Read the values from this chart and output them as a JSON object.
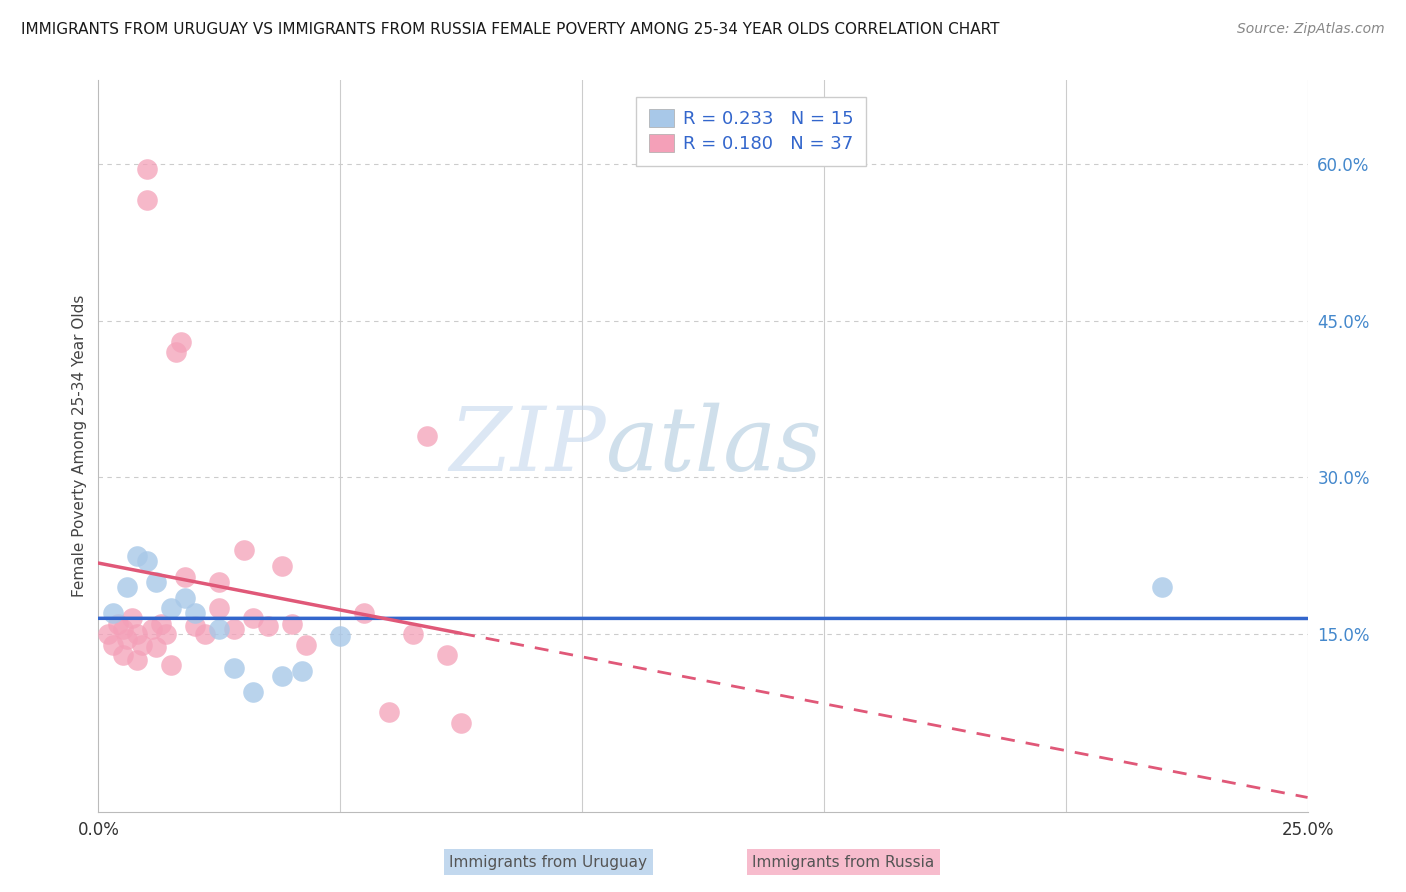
{
  "title": "IMMIGRANTS FROM URUGUAY VS IMMIGRANTS FROM RUSSIA FEMALE POVERTY AMONG 25-34 YEAR OLDS CORRELATION CHART",
  "source": "Source: ZipAtlas.com",
  "ylabel": "Female Poverty Among 25-34 Year Olds",
  "xlim": [
    0.0,
    0.25
  ],
  "ylim": [
    -0.02,
    0.68
  ],
  "xticks": [
    0.0,
    0.05,
    0.1,
    0.15,
    0.2,
    0.25
  ],
  "yticks_right": [
    0.15,
    0.3,
    0.45,
    0.6
  ],
  "ytick_labels_right": [
    "15.0%",
    "30.0%",
    "45.0%",
    "60.0%"
  ],
  "uruguay_color": "#a8c8e8",
  "russia_color": "#f4a0b8",
  "line_uruguay_color": "#3366cc",
  "line_russia_color": "#e05878",
  "R_uruguay": "0.233",
  "N_uruguay": "15",
  "R_russia": "0.180",
  "N_russia": "37",
  "uruguay_x": [
    0.003,
    0.006,
    0.008,
    0.01,
    0.012,
    0.015,
    0.018,
    0.02,
    0.025,
    0.028,
    0.032,
    0.038,
    0.042,
    0.05,
    0.22
  ],
  "uruguay_y": [
    0.17,
    0.195,
    0.225,
    0.22,
    0.2,
    0.175,
    0.185,
    0.17,
    0.155,
    0.118,
    0.095,
    0.11,
    0.115,
    0.148,
    0.195
  ],
  "russia_x": [
    0.002,
    0.003,
    0.004,
    0.005,
    0.005,
    0.006,
    0.007,
    0.008,
    0.008,
    0.009,
    0.01,
    0.01,
    0.011,
    0.012,
    0.013,
    0.014,
    0.015,
    0.016,
    0.017,
    0.018,
    0.02,
    0.022,
    0.025,
    0.025,
    0.028,
    0.03,
    0.032,
    0.035,
    0.038,
    0.04,
    0.043,
    0.055,
    0.06,
    0.065,
    0.068,
    0.072,
    0.075
  ],
  "russia_y": [
    0.15,
    0.14,
    0.16,
    0.13,
    0.155,
    0.145,
    0.165,
    0.125,
    0.15,
    0.14,
    0.595,
    0.565,
    0.155,
    0.138,
    0.16,
    0.15,
    0.12,
    0.42,
    0.43,
    0.205,
    0.158,
    0.15,
    0.2,
    0.175,
    0.155,
    0.23,
    0.165,
    0.158,
    0.215,
    0.16,
    0.14,
    0.17,
    0.075,
    0.15,
    0.34,
    0.13,
    0.065
  ],
  "watermark_zip": "ZIP",
  "watermark_atlas": "atlas",
  "background_color": "#ffffff",
  "grid_color": "#cccccc",
  "legend_label_color": "#3366cc",
  "title_fontsize": 11,
  "source_fontsize": 10,
  "axis_label_fontsize": 11,
  "tick_fontsize": 12,
  "legend_fontsize": 13
}
